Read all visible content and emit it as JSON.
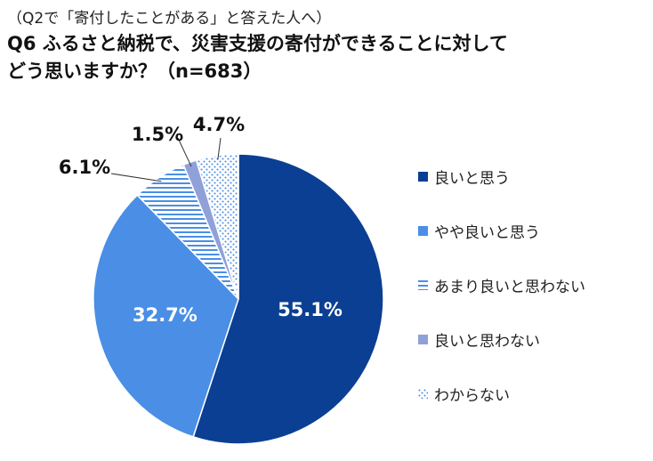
{
  "header": {
    "subtitle": "（Q2で「寄付したことがある」と答えた人へ）",
    "title_line1": "Q6 ふるさと納税で、災害支援の寄付ができることに対して",
    "title_line2": "どう思いますか？（n=683）"
  },
  "chart_data": {
    "type": "pie",
    "categories": [
      "良いと思う",
      "やや良いと思う",
      "あまり良いと思わない",
      "良いと思わない",
      "わからない"
    ],
    "values": [
      55.1,
      32.7,
      6.1,
      1.5,
      4.7
    ],
    "labels": [
      "55.1%",
      "32.7%",
      "6.1%",
      "1.5%",
      "4.7%"
    ],
    "start": "12 o'clock",
    "direction": "clockwise",
    "legend_position": "right",
    "colors": [
      "#0b3f93",
      "#4a8ee6",
      "#4a8ee6",
      "#8fa1d8",
      "#4a8ee6"
    ],
    "fills": [
      "solid",
      "solid",
      "horizontal-stripes",
      "solid",
      "dots"
    ]
  }
}
